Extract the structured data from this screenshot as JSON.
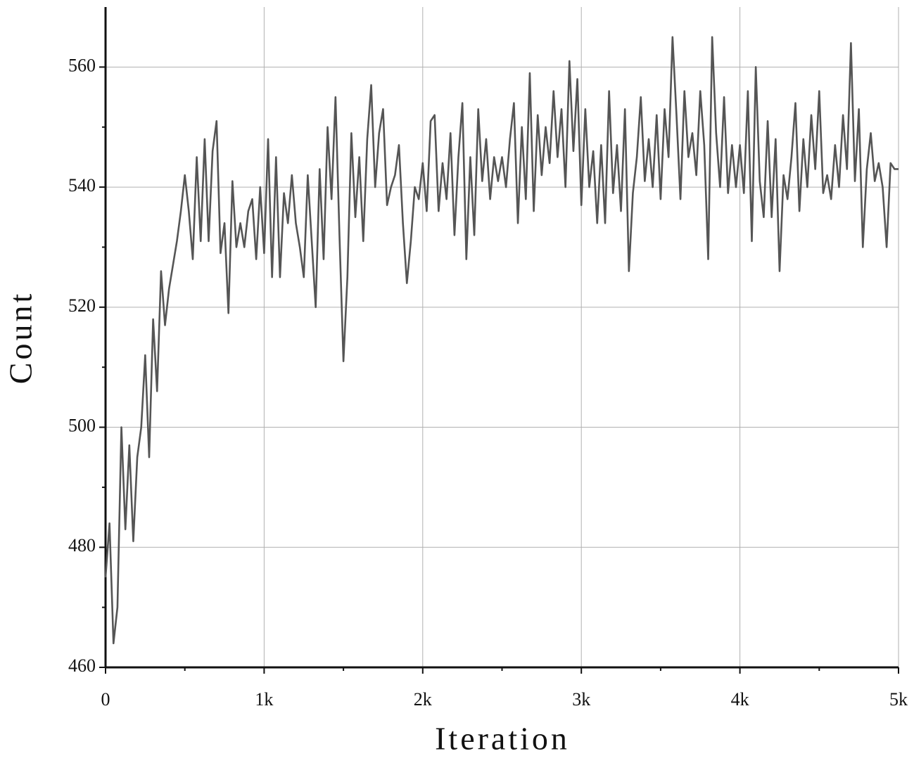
{
  "chart_data": {
    "type": "line",
    "x_label": "Iteration",
    "y_label": "Count",
    "xlim": [
      0,
      5000
    ],
    "ylim": [
      460,
      570
    ],
    "xticks": [
      0,
      {
        "value": 1000,
        "label": "1k"
      },
      {
        "value": 2000,
        "label": "2k"
      },
      {
        "value": 3000,
        "label": "3k"
      },
      {
        "value": 4000,
        "label": "4k"
      },
      {
        "value": 5000,
        "label": "5k"
      }
    ],
    "xminorticks": [
      500,
      1500,
      2500,
      3500,
      4500
    ],
    "yticks": [
      460,
      480,
      500,
      520,
      540,
      560
    ],
    "yminorticks": [
      470,
      490,
      510,
      530,
      550
    ],
    "grid": true,
    "x": [
      0,
      25,
      50,
      75,
      100,
      125,
      150,
      175,
      200,
      225,
      250,
      275,
      300,
      325,
      350,
      375,
      400,
      425,
      450,
      475,
      500,
      525,
      550,
      575,
      600,
      625,
      650,
      675,
      700,
      725,
      750,
      775,
      800,
      825,
      850,
      875,
      900,
      925,
      950,
      975,
      1000,
      1025,
      1050,
      1075,
      1100,
      1125,
      1150,
      1175,
      1200,
      1225,
      1250,
      1275,
      1300,
      1325,
      1350,
      1375,
      1400,
      1425,
      1450,
      1475,
      1500,
      1525,
      1550,
      1575,
      1600,
      1625,
      1650,
      1675,
      1700,
      1725,
      1750,
      1775,
      1800,
      1825,
      1850,
      1875,
      1900,
      1925,
      1950,
      1975,
      2000,
      2025,
      2050,
      2075,
      2100,
      2125,
      2150,
      2175,
      2200,
      2225,
      2250,
      2275,
      2300,
      2325,
      2350,
      2375,
      2400,
      2425,
      2450,
      2475,
      2500,
      2525,
      2550,
      2575,
      2600,
      2625,
      2650,
      2675,
      2700,
      2725,
      2750,
      2775,
      2800,
      2825,
      2850,
      2875,
      2900,
      2925,
      2950,
      2975,
      3000,
      3025,
      3050,
      3075,
      3100,
      3125,
      3150,
      3175,
      3200,
      3225,
      3250,
      3275,
      3300,
      3325,
      3350,
      3375,
      3400,
      3425,
      3450,
      3475,
      3500,
      3525,
      3550,
      3575,
      3600,
      3625,
      3650,
      3675,
      3700,
      3725,
      3750,
      3775,
      3800,
      3825,
      3850,
      3875,
      3900,
      3925,
      3950,
      3975,
      4000,
      4025,
      4050,
      4075,
      4100,
      4125,
      4150,
      4175,
      4200,
      4225,
      4250,
      4275,
      4300,
      4325,
      4350,
      4375,
      4400,
      4425,
      4450,
      4475,
      4500,
      4525,
      4550,
      4575,
      4600,
      4625,
      4650,
      4675,
      4700,
      4725,
      4750,
      4775,
      4800,
      4825,
      4850,
      4875,
      4900,
      4925,
      4950,
      4975,
      5000
    ],
    "series": [
      {
        "color": "#555555",
        "values": [
          475,
          484,
          464,
          470,
          500,
          483,
          497,
          481,
          495,
          500,
          512,
          495,
          518,
          506,
          526,
          517,
          523,
          527,
          531,
          536,
          542,
          536,
          528,
          545,
          531,
          548,
          531,
          546,
          551,
          529,
          534,
          519,
          541,
          530,
          534,
          530,
          536,
          538,
          528,
          540,
          529,
          548,
          525,
          545,
          525,
          539,
          534,
          542,
          534,
          530,
          525,
          542,
          531,
          520,
          543,
          528,
          550,
          538,
          555,
          532,
          511,
          525,
          549,
          535,
          545,
          531,
          548,
          557,
          540,
          549,
          553,
          537,
          540,
          542,
          547,
          534,
          524,
          531,
          540,
          538,
          544,
          536,
          551,
          552,
          536,
          544,
          538,
          549,
          532,
          545,
          554,
          528,
          545,
          532,
          553,
          541,
          548,
          538,
          545,
          541,
          545,
          540,
          548,
          554,
          534,
          550,
          538,
          559,
          536,
          552,
          542,
          550,
          544,
          556,
          545,
          553,
          540,
          561,
          546,
          558,
          537,
          553,
          540,
          546,
          534,
          547,
          534,
          556,
          539,
          547,
          536,
          553,
          526,
          539,
          545,
          555,
          541,
          548,
          540,
          552,
          538,
          553,
          545,
          565,
          552,
          538,
          556,
          545,
          549,
          542,
          556,
          547,
          528,
          565,
          549,
          540,
          555,
          539,
          547,
          540,
          547,
          539,
          556,
          531,
          560,
          541,
          535,
          551,
          535,
          548,
          526,
          542,
          538,
          545,
          554,
          536,
          548,
          540,
          552,
          543,
          556,
          539,
          542,
          538,
          547,
          540,
          552,
          543,
          564,
          541,
          553,
          530,
          543,
          549,
          541,
          544,
          540,
          530,
          544,
          543,
          543
        ]
      }
    ]
  }
}
